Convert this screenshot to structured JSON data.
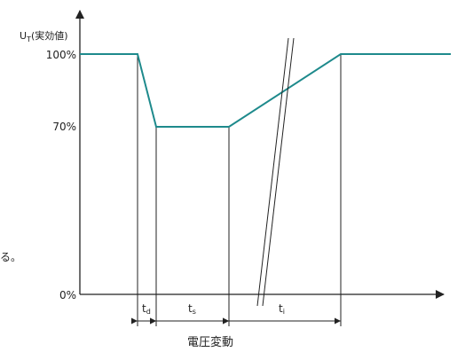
{
  "y_axis_label": "U",
  "y_axis_label_sub": "T",
  "y_axis_label_suffix": "(実効値)",
  "y_ticks": {
    "full": "100%",
    "reduced": "70%",
    "zero": "0%"
  },
  "left_fragment": "る。",
  "intervals": {
    "td": {
      "main": "t",
      "sub": "d"
    },
    "ts": {
      "main": "t",
      "sub": "s"
    },
    "ti": {
      "main": "t",
      "sub": "i"
    }
  },
  "caption": "電圧変動",
  "colors": {
    "curve": "#1e8a8c",
    "axes": "#222222",
    "lines": "#222222"
  },
  "chart_data": {
    "type": "line",
    "title": "",
    "ylabel": "U_T(実効値)",
    "xlabel": "電圧変動",
    "ylim": [
      0,
      100
    ],
    "series": [
      {
        "values_percent": [
          100,
          100,
          70,
          70,
          100,
          100
        ]
      }
    ]
  }
}
